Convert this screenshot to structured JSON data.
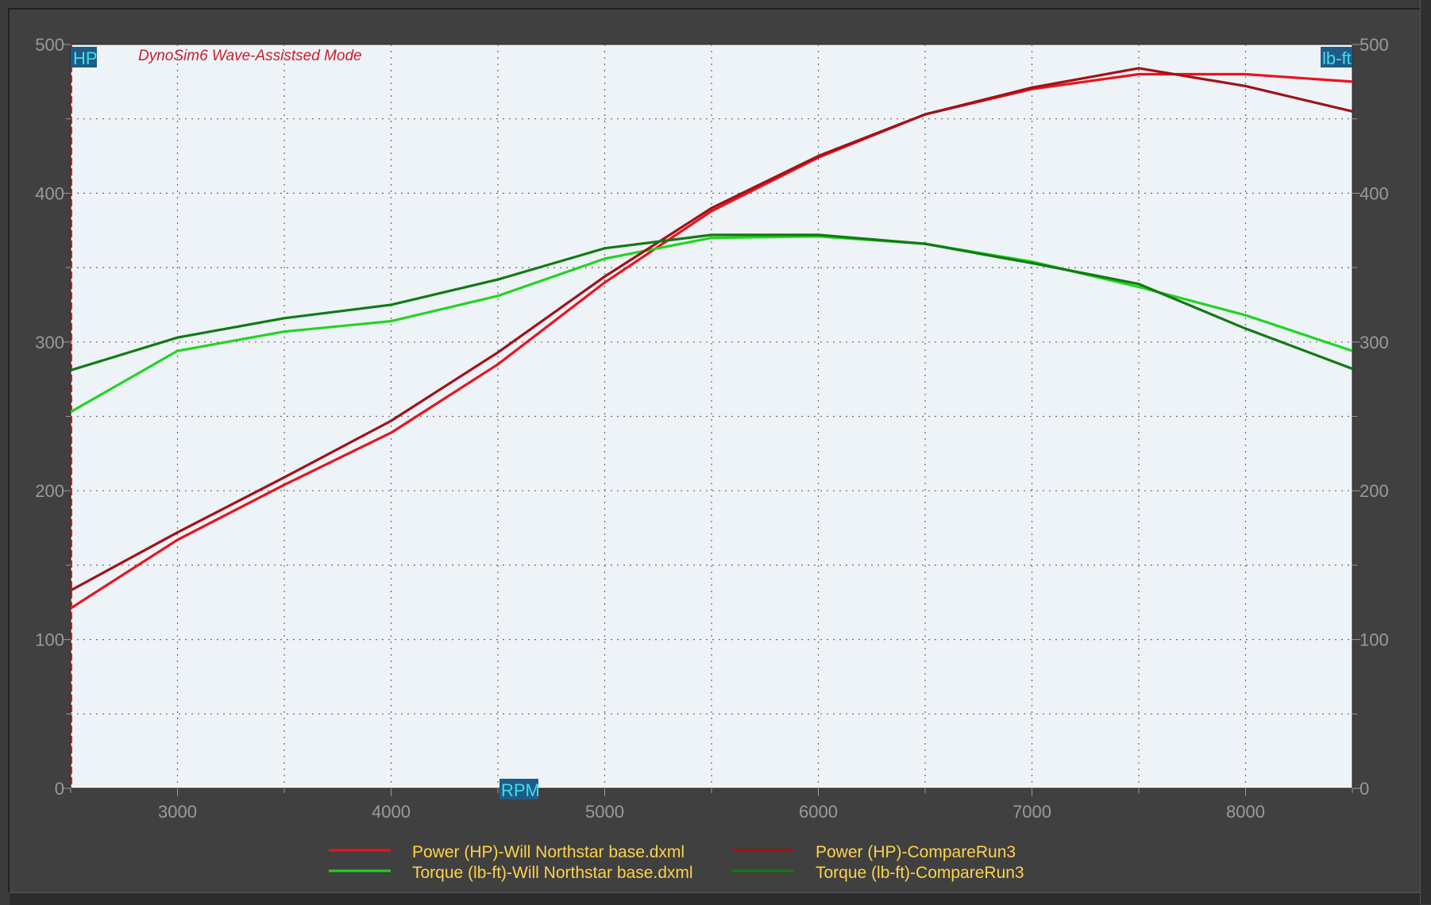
{
  "chart_data": {
    "type": "line",
    "title": "DynoSim6 Wave-Assistsed Mode",
    "xlabel": "RPM",
    "ylabel_left": "HP",
    "ylabel_right": "lb-ft",
    "xlim": [
      2500,
      8500
    ],
    "ylim": [
      0,
      500
    ],
    "x_ticks": [
      "3000",
      "4000",
      "5000",
      "6000",
      "7000",
      "8000"
    ],
    "y_ticks_left": [
      "0",
      "100",
      "200",
      "300",
      "400",
      "500"
    ],
    "y_ticks_right": [
      "0",
      "100",
      "200",
      "300",
      "400",
      "500"
    ],
    "grid": true,
    "legend_position": "bottom",
    "series": [
      {
        "name": "Power (HP)-Will Northstar base.dxml",
        "color": "#e8141e",
        "x": [
          2500,
          3000,
          3500,
          4000,
          4500,
          5000,
          5500,
          6000,
          6500,
          7000,
          7500,
          8000,
          8500
        ],
        "y": [
          121,
          167,
          204,
          239,
          285,
          340,
          388,
          424,
          453,
          470,
          480,
          480,
          475
        ]
      },
      {
        "name": "Torque (lb-ft)-Will Northstar base.dxml",
        "color": "#22d422",
        "x": [
          2500,
          3000,
          3500,
          4000,
          4500,
          5000,
          5500,
          6000,
          6500,
          7000,
          7500,
          8000,
          8500
        ],
        "y": [
          253,
          294,
          307,
          314,
          331,
          356,
          370,
          371,
          366,
          354,
          337,
          318,
          294
        ]
      },
      {
        "name": "Power (HP)-CompareRun3",
        "color": "#a01218",
        "x": [
          2500,
          3000,
          3500,
          4000,
          4500,
          5000,
          5500,
          6000,
          6500,
          7000,
          7500,
          8000,
          8500
        ],
        "y": [
          133,
          172,
          209,
          247,
          293,
          344,
          390,
          425,
          453,
          471,
          484,
          472,
          455
        ]
      },
      {
        "name": "Torque (lb-ft)-CompareRun3",
        "color": "#117a11",
        "x": [
          2500,
          3000,
          3500,
          4000,
          4500,
          5000,
          5500,
          6000,
          6500,
          7000,
          7500,
          8000,
          8500
        ],
        "y": [
          281,
          303,
          316,
          325,
          342,
          363,
          372,
          372,
          366,
          353,
          339,
          309,
          282
        ]
      }
    ]
  }
}
